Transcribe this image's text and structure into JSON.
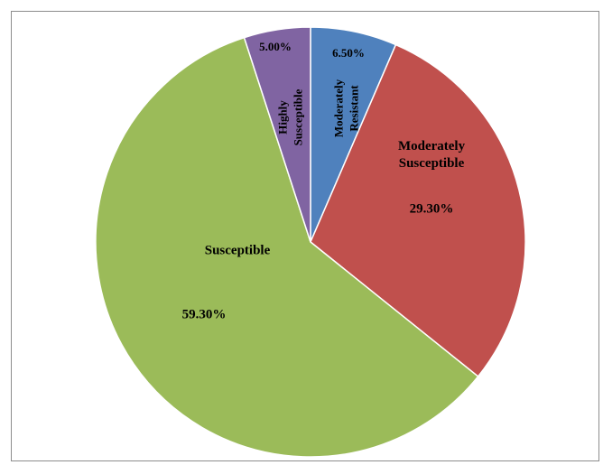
{
  "chart_data": {
    "type": "pie",
    "title": "",
    "slices": [
      {
        "label_lines": [
          "Moderately",
          "Resistant"
        ],
        "value_label": "6.50%",
        "value": 6.5,
        "color": "#4f81bd"
      },
      {
        "label_lines": [
          "Moderately",
          "Susceptible"
        ],
        "value_label": "29.30%",
        "value": 29.3,
        "color": "#c0504d"
      },
      {
        "label_lines": [
          "Susceptible"
        ],
        "value_label": "59.30%",
        "value": 59.3,
        "color": "#9bbb59"
      },
      {
        "label_lines": [
          "Highly",
          "Susceptible"
        ],
        "value_label": "5.00%",
        "value": 5.0,
        "color": "#8064a2"
      }
    ],
    "start_angle": "12 o'clock",
    "direction": "clockwise",
    "legend": "none"
  }
}
